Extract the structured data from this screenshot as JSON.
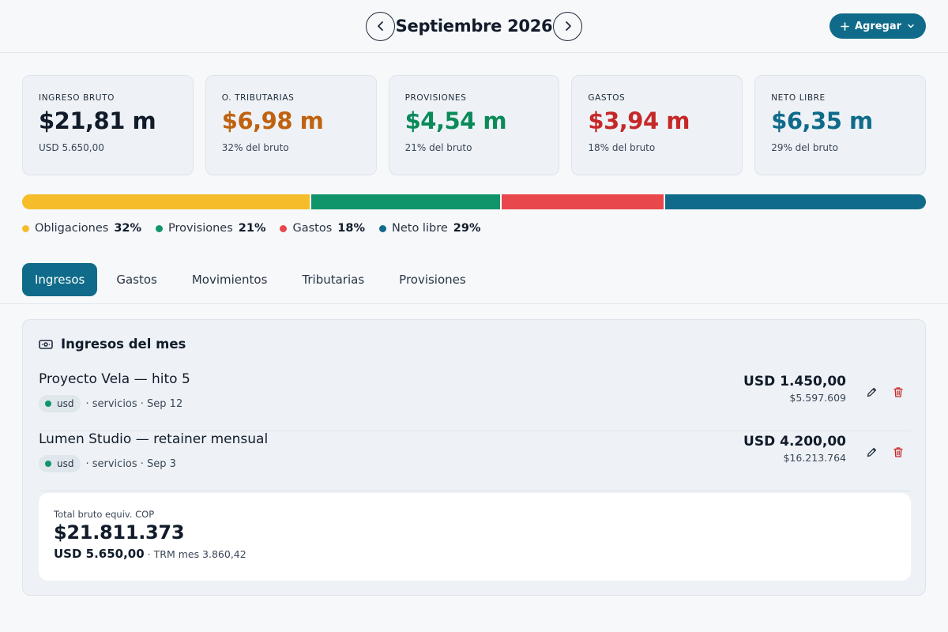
{
  "header": {
    "month_title": "Septiembre 2026",
    "add_label": "Agregar"
  },
  "cards": [
    {
      "label": "INGRESO BRUTO",
      "value": "$21,81 m",
      "sub": "USD 5.650,00",
      "color": "#111b2a"
    },
    {
      "label": "O. TRIBUTARIAS",
      "value": "$6,98 m",
      "sub": "32% del bruto",
      "color": "#c0620f"
    },
    {
      "label": "PROVISIONES",
      "value": "$4,54 m",
      "sub": "21% del bruto",
      "color": "#0b8a5a"
    },
    {
      "label": "GASTOS",
      "value": "$3,94 m",
      "sub": "18% del bruto",
      "color": "#c62828"
    },
    {
      "label": "NETO LIBRE",
      "value": "$6,35 m",
      "sub": "29% del bruto",
      "color": "#0f6b89"
    }
  ],
  "distribution": [
    {
      "name": "Obligaciones",
      "pct_label": "32%",
      "fraction": 0.32,
      "color": "#f5bd2a"
    },
    {
      "name": "Provisiones",
      "pct_label": "21%",
      "fraction": 0.21,
      "color": "#10956a"
    },
    {
      "name": "Gastos",
      "pct_label": "18%",
      "fraction": 0.18,
      "color": "#e8474b"
    },
    {
      "name": "Neto libre",
      "pct_label": "29%",
      "fraction": 0.29,
      "color": "#0f6b89"
    }
  ],
  "tabs": [
    {
      "label": "Ingresos",
      "active": true
    },
    {
      "label": "Gastos",
      "active": false
    },
    {
      "label": "Movimientos",
      "active": false
    },
    {
      "label": "Tributarias",
      "active": false
    },
    {
      "label": "Provisiones",
      "active": false
    }
  ],
  "panel": {
    "title": "Ingresos del mes",
    "rows": [
      {
        "title": "Proyecto Vela — hito 5",
        "currency": "usd",
        "meta": "· servicios · Sep 12",
        "amount": "USD 1.450,00",
        "amount_cop": "$5.597.609"
      },
      {
        "title": "Lumen Studio — retainer mensual",
        "currency": "usd",
        "meta": "· servicios · Sep 3",
        "amount": "USD 4.200,00",
        "amount_cop": "$16.213.764"
      }
    ],
    "total": {
      "label": "Total bruto equiv. COP",
      "value": "$21.811.373",
      "usd": "USD 5.650,00",
      "trm": "· TRM mes 3.860,42"
    }
  },
  "colors": {
    "accent": "#0f6b89",
    "delete": "#c62828",
    "usd_dot": "#10956a"
  },
  "icons": {
    "prev": "chevron-left-icon",
    "next": "chevron-right-icon",
    "add": "plus-icon",
    "dropdown": "chevron-down-icon",
    "panel": "cash-icon",
    "edit": "pencil-icon",
    "delete": "trash-icon"
  }
}
